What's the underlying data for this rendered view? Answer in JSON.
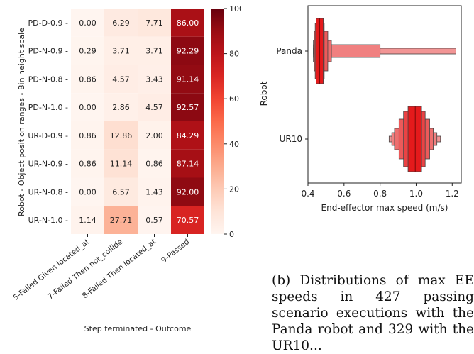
{
  "chart_data": [
    {
      "type": "heatmap",
      "ylabel": "Robot - Object position ranges - Bin height scale",
      "xlabel": "Step terminated - Outcome",
      "rows": [
        "PD-D-0.9",
        "PD-N-0.9",
        "PD-N-0.8",
        "PD-N-1.0",
        "UR-D-0.9",
        "UR-N-0.9",
        "UR-N-0.8",
        "UR-N-1.0"
      ],
      "columns": [
        "5-Failed Given located_at",
        "7-Failed  Then not_collide",
        "8-Failed  Then located_at",
        "9-Passed"
      ],
      "values": [
        [
          0.0,
          6.29,
          7.71,
          86.0
        ],
        [
          0.29,
          3.71,
          3.71,
          92.29
        ],
        [
          0.86,
          4.57,
          3.43,
          91.14
        ],
        [
          0.0,
          2.86,
          4.57,
          92.57
        ],
        [
          0.86,
          12.86,
          2.0,
          84.29
        ],
        [
          0.86,
          11.14,
          0.86,
          87.14
        ],
        [
          0.0,
          6.57,
          1.43,
          92.0
        ],
        [
          1.14,
          27.71,
          0.57,
          70.57
        ]
      ],
      "colorbar": {
        "min": 0,
        "max": 100,
        "ticks": [
          0,
          20,
          40,
          60,
          80,
          100
        ],
        "cmap": "Reds"
      }
    },
    {
      "type": "boxen",
      "xlabel": "End-effector max speed (m/s)",
      "ylabel": "Robot",
      "categories": [
        "Panda",
        "UR10"
      ],
      "xlim": [
        0.4,
        1.25
      ],
      "xticks": [
        0.4,
        0.6,
        0.8,
        1.0,
        1.2
      ],
      "series": [
        {
          "name": "Panda",
          "median": 0.465,
          "boxes": [
            [
              0.445,
              0.485
            ],
            [
              0.44,
              0.49
            ],
            [
              0.435,
              0.51
            ],
            [
              0.43,
              0.53
            ],
            [
              0.43,
              0.8
            ],
            [
              0.43,
              1.22
            ]
          ],
          "color": "#e41a1c"
        },
        {
          "name": "UR10",
          "median": 0.995,
          "boxes": [
            [
              0.955,
              1.03
            ],
            [
              0.93,
              1.05
            ],
            [
              0.905,
              1.075
            ],
            [
              0.88,
              1.095
            ],
            [
              0.865,
              1.115
            ],
            [
              0.85,
              1.135
            ]
          ],
          "color": "#e41a1c"
        }
      ]
    }
  ],
  "caption": "(b) Distributions of max EE speeds in 427 passing scenario executions with the Panda robot and 329 with the UR10..."
}
